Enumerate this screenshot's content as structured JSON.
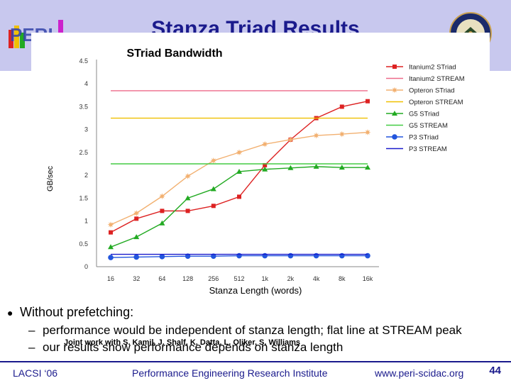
{
  "slide": {
    "title": "Stanza Triad Results",
    "bullet_text": "Without prefetching:",
    "sub_bullets": [
      "performance would be independent of stanza length; flat line at STREAM peak",
      "our results show performance depends on stanza length"
    ],
    "credit": "Joint work with S. Kamil, J. Shalf, K. Datta, L. Oliker, S. Williams",
    "footer_left": "LACSI ‘06",
    "footer_center": "Performance Engineering Research Institute",
    "footer_right": "www.peri-scidac.org",
    "page_number": "44",
    "logo_text": "PERI"
  },
  "colors": {
    "header_band": "#c8c8ee",
    "title": "#1a1a8c",
    "itanium2": "#dd2222",
    "itanium2_stream": "#ee6a8a",
    "opteron": "#f2b070",
    "opteron_stream": "#f0c000",
    "g5": "#22aa22",
    "g5_stream": "#44cc44",
    "p3": "#2255dd",
    "p3_stream": "#1a1acc"
  },
  "chart_data": {
    "type": "line",
    "title": "STriad Bandwidth",
    "xlabel": "Stanza Length (words)",
    "ylabel": "GB/sec",
    "categories": [
      "16",
      "32",
      "64",
      "128",
      "256",
      "512",
      "1k",
      "2k",
      "4k",
      "8k",
      "16k"
    ],
    "ylim": [
      0,
      4.5
    ],
    "yticks": [
      "0",
      "0.5",
      "1",
      "1.5",
      "2",
      "2.5",
      "3",
      "3.5",
      "4",
      "4.5"
    ],
    "legend_position": "right",
    "grid": false,
    "series": [
      {
        "name": "Itanium2 STriad",
        "kind": "marker-line",
        "marker": "square",
        "color": "#dd2222",
        "values": [
          0.75,
          1.05,
          1.22,
          1.22,
          1.33,
          1.53,
          2.22,
          2.78,
          3.25,
          3.5,
          3.62
        ]
      },
      {
        "name": "Itanium2 STREAM",
        "kind": "flat",
        "color": "#ee6a8a",
        "values": [
          3.85,
          3.85,
          3.85,
          3.85,
          3.85,
          3.85,
          3.85,
          3.85,
          3.85,
          3.85,
          3.85
        ]
      },
      {
        "name": "Opteron STriad",
        "kind": "marker-line",
        "marker": "star",
        "color": "#f2b070",
        "values": [
          0.92,
          1.17,
          1.54,
          1.98,
          2.32,
          2.5,
          2.68,
          2.78,
          2.87,
          2.9,
          2.94
        ]
      },
      {
        "name": "Opteron STREAM",
        "kind": "flat",
        "color": "#f0c000",
        "values": [
          3.25,
          3.25,
          3.25,
          3.25,
          3.25,
          3.25,
          3.25,
          3.25,
          3.25,
          3.25,
          3.25
        ]
      },
      {
        "name": "G5 STriad",
        "kind": "marker-line",
        "marker": "triangle",
        "color": "#22aa22",
        "values": [
          0.43,
          0.65,
          0.95,
          1.5,
          1.7,
          2.08,
          2.13,
          2.16,
          2.19,
          2.17,
          2.17
        ]
      },
      {
        "name": "G5 STREAM",
        "kind": "flat",
        "color": "#44cc44",
        "values": [
          2.25,
          2.25,
          2.25,
          2.25,
          2.25,
          2.25,
          2.25,
          2.25,
          2.25,
          2.25,
          2.25
        ]
      },
      {
        "name": "P3 STriad",
        "kind": "marker-line",
        "marker": "circle",
        "color": "#2255dd",
        "values": [
          0.2,
          0.21,
          0.22,
          0.23,
          0.23,
          0.24,
          0.24,
          0.24,
          0.24,
          0.24,
          0.24
        ]
      },
      {
        "name": "P3 STREAM",
        "kind": "flat",
        "color": "#1a1acc",
        "values": [
          0.27,
          0.27,
          0.27,
          0.27,
          0.27,
          0.27,
          0.27,
          0.27,
          0.27,
          0.27,
          0.27
        ]
      }
    ]
  }
}
